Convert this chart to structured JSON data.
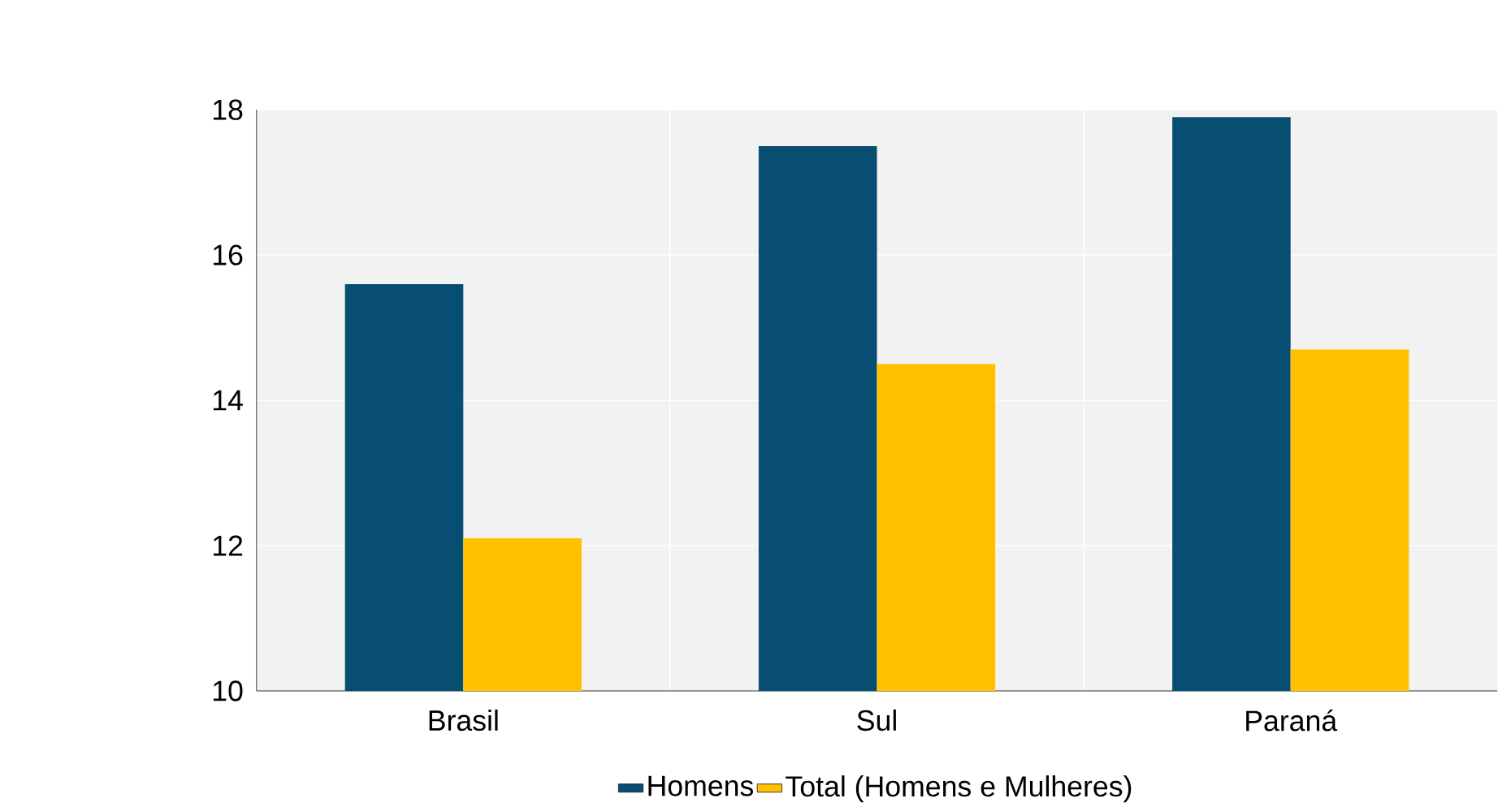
{
  "chart_data": {
    "type": "bar",
    "categories": [
      "Brasil",
      "Sul",
      "Paraná"
    ],
    "series": [
      {
        "name": "Homens",
        "color": "#084d72",
        "values": [
          15.6,
          17.5,
          17.9
        ]
      },
      {
        "name": "Total (Homens e Mulheres)",
        "color": "#ffc000",
        "values": [
          12.1,
          14.5,
          14.7
        ]
      }
    ],
    "ylim": [
      10,
      18
    ],
    "yticks": [
      10,
      12,
      14,
      16,
      18
    ],
    "grid": true,
    "legend": "bottom"
  }
}
